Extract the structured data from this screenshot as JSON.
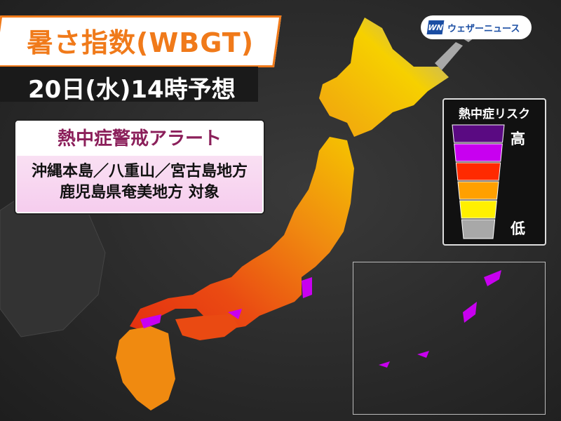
{
  "header": {
    "title": "暑さ指数(WBGT)",
    "subtitle": "20日(水)14時予想"
  },
  "alert": {
    "heading": "熱中症警戒アラート",
    "lines": [
      "沖縄本島／八重山／宮古島地方",
      "鹿児島県奄美地方 対象"
    ]
  },
  "logo": {
    "mark": "WN",
    "text": "ウェザーニュース"
  },
  "legend": {
    "title": "熱中症リスク",
    "high_label": "高",
    "low_label": "低",
    "levels": [
      {
        "color": "#5a0a82"
      },
      {
        "color": "#c800f0"
      },
      {
        "color": "#ff2a00"
      },
      {
        "color": "#ffa000"
      },
      {
        "color": "#fff000"
      },
      {
        "color": "#a8a8a8"
      }
    ]
  },
  "colors": {
    "title_accent": "#f07a1a",
    "alert_heading": "#8b1f5a",
    "background": "#2b2b2b"
  }
}
